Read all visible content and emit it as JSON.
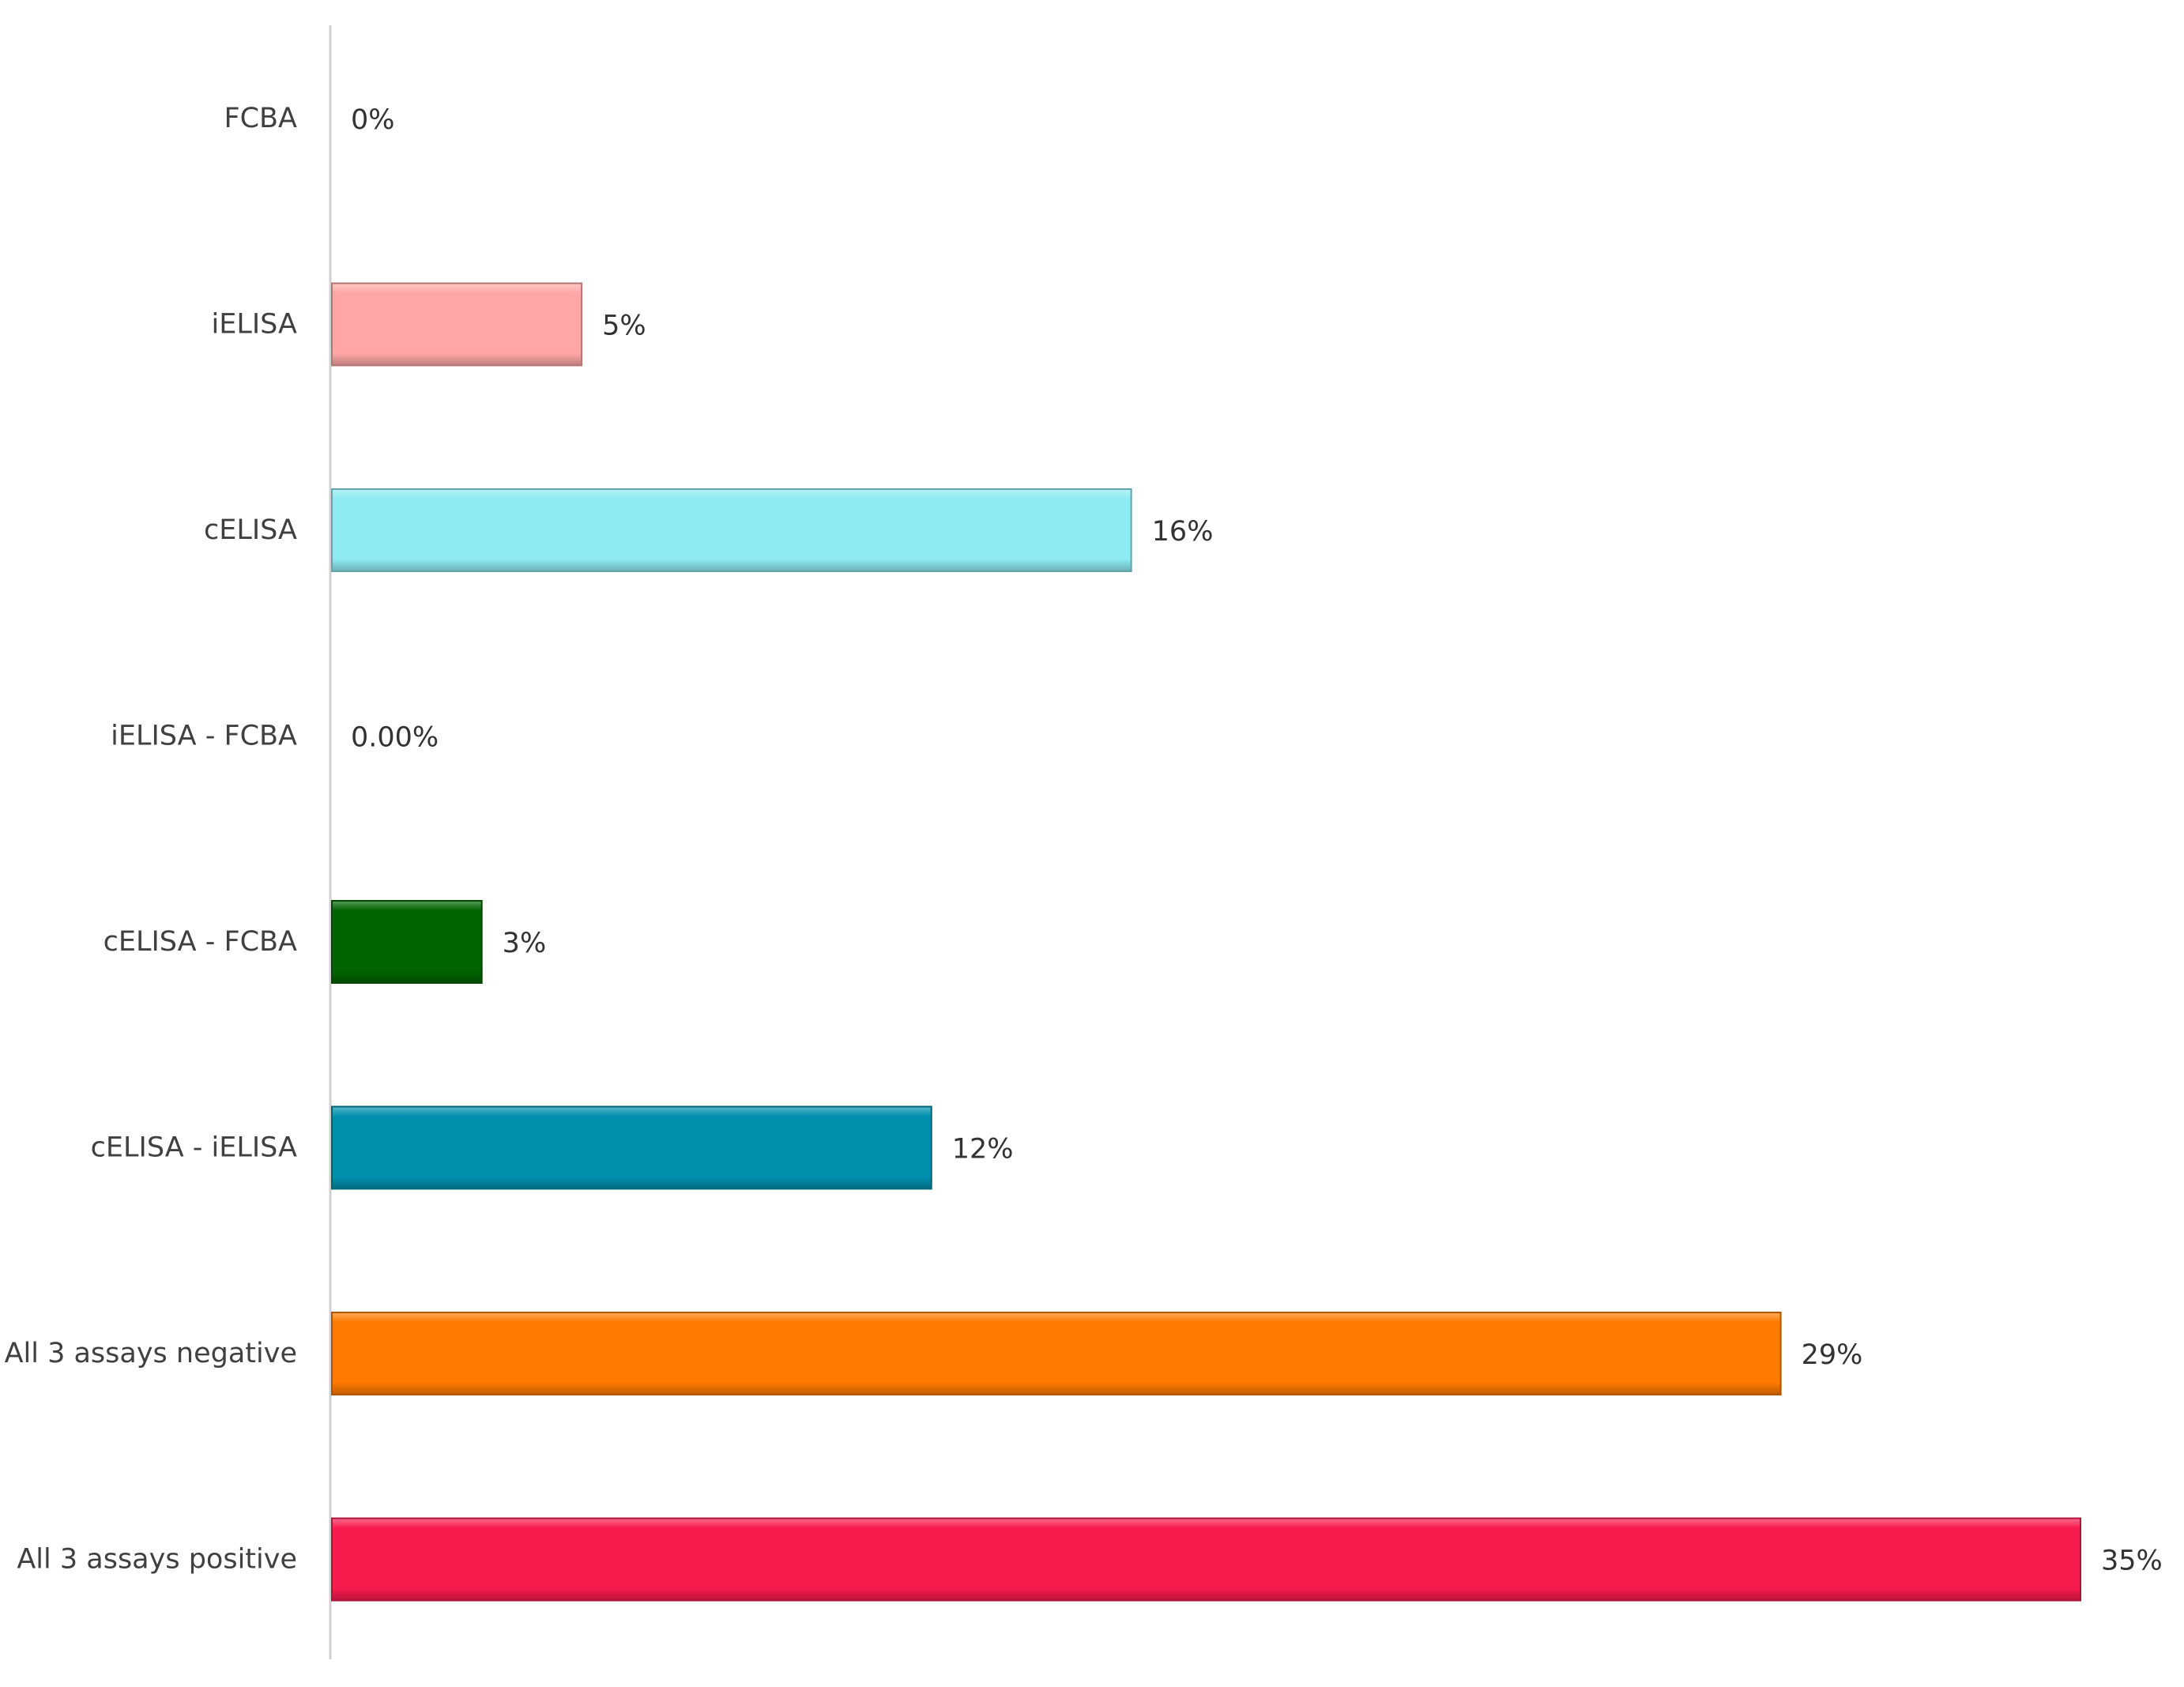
{
  "chart_data": {
    "type": "bar",
    "orientation": "horizontal",
    "title": "",
    "xlabel": "",
    "ylabel": "",
    "xlim": [
      0,
      35
    ],
    "grid": false,
    "legend": "none",
    "categories": [
      "FCBA",
      "iELISA",
      "cELISA",
      "iELISA - FCBA",
      "cELISA - FCBA",
      "cELISA - iELISA",
      "All 3 assays negative",
      "All 3 assays positive"
    ],
    "values": [
      0,
      5,
      16,
      0,
      3,
      12,
      29,
      35
    ],
    "value_labels": [
      "0%",
      "5%",
      "16%",
      "0.00%",
      "3%",
      "12%",
      "29%",
      "35%"
    ],
    "colors": [
      "#9ec5e8",
      "#ffa7a6",
      "#8eebf3",
      "#9ec5e8",
      "#006400",
      "#0090ae",
      "#ff7a00",
      "#f81b4e"
    ]
  }
}
